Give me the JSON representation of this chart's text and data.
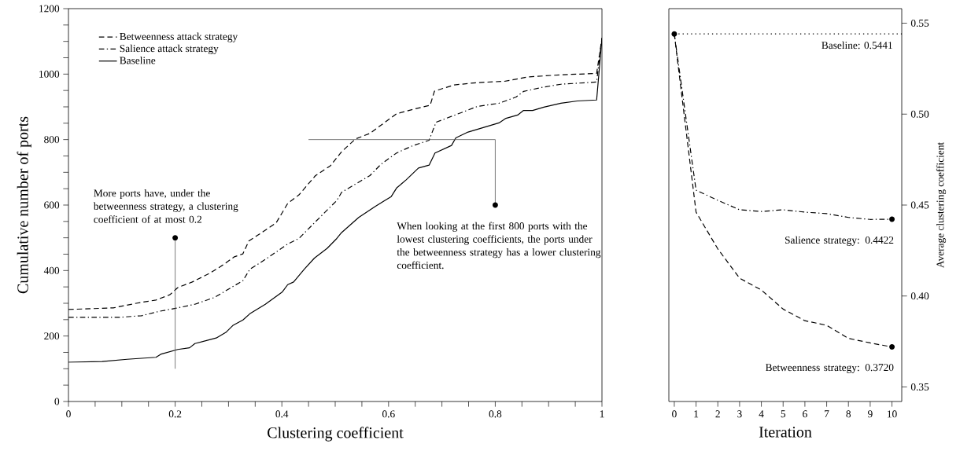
{
  "chart_data": [
    {
      "type": "line",
      "xlabel": "Clustering coefficient",
      "ylabel": "Cumulative number of ports",
      "xlim": [
        0,
        1
      ],
      "ylim": [
        0,
        1200
      ],
      "xticks": [
        0,
        {
          "value": 0.05,
          "label": null
        },
        {
          "value": 0.1,
          "label": null
        },
        {
          "value": 0.15,
          "label": null
        },
        0.2,
        {
          "value": 0.25,
          "label": null
        },
        {
          "value": 0.3,
          "label": null
        },
        {
          "value": 0.35,
          "label": null
        },
        0.4,
        {
          "value": 0.45,
          "label": null
        },
        {
          "value": 0.5,
          "label": null
        },
        {
          "value": 0.55,
          "label": null
        },
        0.6,
        {
          "value": 0.65,
          "label": null
        },
        {
          "value": 0.7,
          "label": null
        },
        {
          "value": 0.75,
          "label": null
        },
        0.8,
        {
          "value": 0.85,
          "label": null
        },
        {
          "value": 0.9,
          "label": null
        },
        {
          "value": 0.95,
          "label": null
        },
        1
      ],
      "yticks": [
        0,
        {
          "value": 50,
          "label": null
        },
        {
          "value": 100,
          "label": null
        },
        {
          "value": 150,
          "label": null
        },
        200,
        {
          "value": 250,
          "label": null
        },
        {
          "value": 300,
          "label": null
        },
        {
          "value": 350,
          "label": null
        },
        400,
        {
          "value": 450,
          "label": null
        },
        {
          "value": 500,
          "label": null
        },
        {
          "value": 550,
          "label": null
        },
        600,
        {
          "value": 650,
          "label": null
        },
        {
          "value": 700,
          "label": null
        },
        {
          "value": 750,
          "label": null
        },
        800,
        {
          "value": 850,
          "label": null
        },
        {
          "value": 900,
          "label": null
        },
        {
          "value": 950,
          "label": null
        },
        1000,
        {
          "value": 1050,
          "label": null
        },
        {
          "value": 1100,
          "label": null
        },
        {
          "value": 1150,
          "label": null
        },
        1200
      ],
      "legend": "top left",
      "series": [
        {
          "name": "Betweenness attack strategy",
          "color": "#000000",
          "line_style": "dashed",
          "x": [
            0,
            0.084,
            0.127,
            0.164,
            0.19,
            0.205,
            0.232,
            0.264,
            0.285,
            0.311,
            0.327,
            0.338,
            0.389,
            0.411,
            0.432,
            0.463,
            0.491,
            0.512,
            0.538,
            0.565,
            0.615,
            0.645,
            0.678,
            0.686,
            0.723,
            0.766,
            0.817,
            0.86,
            0.923,
            0.99,
            1
          ],
          "values": [
            281,
            286,
            300,
            310,
            326,
            348,
            365,
            391,
            412,
            442,
            451,
            490,
            545,
            605,
            631,
            690,
            720,
            763,
            802,
            819,
            879,
            892,
            905,
            948,
            967,
            974,
            978,
            991,
            998,
            1002,
            1110
          ]
        },
        {
          "name": "Salience attack strategy",
          "color": "#000000",
          "line_style": "dashdot",
          "x": [
            0,
            0.095,
            0.137,
            0.169,
            0.205,
            0.237,
            0.274,
            0.305,
            0.327,
            0.34,
            0.369,
            0.411,
            0.432,
            0.463,
            0.503,
            0.512,
            0.565,
            0.586,
            0.615,
            0.645,
            0.676,
            0.689,
            0.739,
            0.766,
            0.807,
            0.839,
            0.853,
            0.886,
            0.923,
            0.99,
            1
          ],
          "values": [
            257,
            257,
            262,
            275,
            286,
            297,
            318,
            348,
            369,
            404,
            434,
            481,
            498,
            549,
            614,
            639,
            690,
            725,
            759,
            781,
            798,
            853,
            884,
            901,
            911,
            930,
            947,
            959,
            969,
            976,
            1110
          ]
        },
        {
          "name": "Baseline",
          "color": "#000000",
          "line_style": "solid",
          "x": [
            0,
            0.063,
            0.11,
            0.164,
            0.174,
            0.205,
            0.227,
            0.237,
            0.277,
            0.295,
            0.308,
            0.327,
            0.34,
            0.369,
            0.401,
            0.411,
            0.422,
            0.442,
            0.461,
            0.485,
            0.503,
            0.512,
            0.544,
            0.575,
            0.605,
            0.615,
            0.633,
            0.656,
            0.676,
            0.687,
            0.718,
            0.726,
            0.749,
            0.786,
            0.807,
            0.82,
            0.842,
            0.853,
            0.87,
            0.891,
            0.923,
            0.954,
            0.99,
            1
          ],
          "values": [
            120,
            122,
            129,
            135,
            145,
            159,
            164,
            177,
            194,
            211,
            232,
            249,
            268,
            297,
            335,
            357,
            365,
            404,
            438,
            468,
            498,
            516,
            562,
            596,
            626,
            652,
            677,
            713,
            722,
            759,
            782,
            805,
            823,
            841,
            851,
            865,
            875,
            889,
            889,
            899,
            911,
            918,
            921,
            1110
          ]
        }
      ],
      "annotations": [
        {
          "text": "More ports have, under the betweenness strategy, a clustering coefficient of at most 0.2",
          "x": 0.2,
          "y": 500
        },
        {
          "text": "When looking at the first 800 ports with the lowest clustering coefficients, the ports under the betweenness strategy has a lower clustering coefficient.",
          "x": 0.8,
          "y": 600
        }
      ]
    },
    {
      "type": "line",
      "xlabel": "Iteration",
      "ylabel": "Average clustering coefficient",
      "xlim": [
        -0.25,
        10.45
      ],
      "ylim": [
        0.342,
        0.558
      ],
      "xticks": [
        0,
        1,
        2,
        3,
        4,
        5,
        6,
        7,
        8,
        9,
        10
      ],
      "yticks": [
        0.35,
        {
          "value": 0.4,
          "label": "0.40"
        },
        0.45,
        {
          "value": 0.5,
          "label": "0.50"
        },
        0.55
      ],
      "series": [
        {
          "color": "#000000",
          "line_style": "dashed",
          "x": [
            0,
            1,
            2,
            3,
            4,
            5,
            6,
            7,
            8,
            9,
            10
          ],
          "values": [
            0.5441,
            0.4461,
            0.4259,
            0.4098,
            0.4033,
            0.3928,
            0.3864,
            0.3839,
            0.3767,
            0.3742,
            0.372
          ]
        },
        {
          "color": "#000000",
          "line_style": "dashdot",
          "x": [
            0,
            1,
            2,
            3,
            4,
            5,
            6,
            7,
            8,
            9,
            10
          ],
          "values": [
            0.5441,
            0.4582,
            0.4526,
            0.4474,
            0.4465,
            0.4474,
            0.4461,
            0.4453,
            0.4432,
            0.4421,
            0.4422
          ]
        }
      ],
      "ref_lines": [
        {
          "axis": "y",
          "value": 0.5441,
          "label": "Baseline: 0.5441",
          "line_style": "dotted",
          "color": "#000000"
        }
      ],
      "annotations": [
        {
          "text": "Salience strategy: 0.4422",
          "x": 10,
          "y": 0.4422
        },
        {
          "text": "Betweenness strategy: 0.3720",
          "x": 10,
          "y": 0.372
        }
      ]
    }
  ]
}
